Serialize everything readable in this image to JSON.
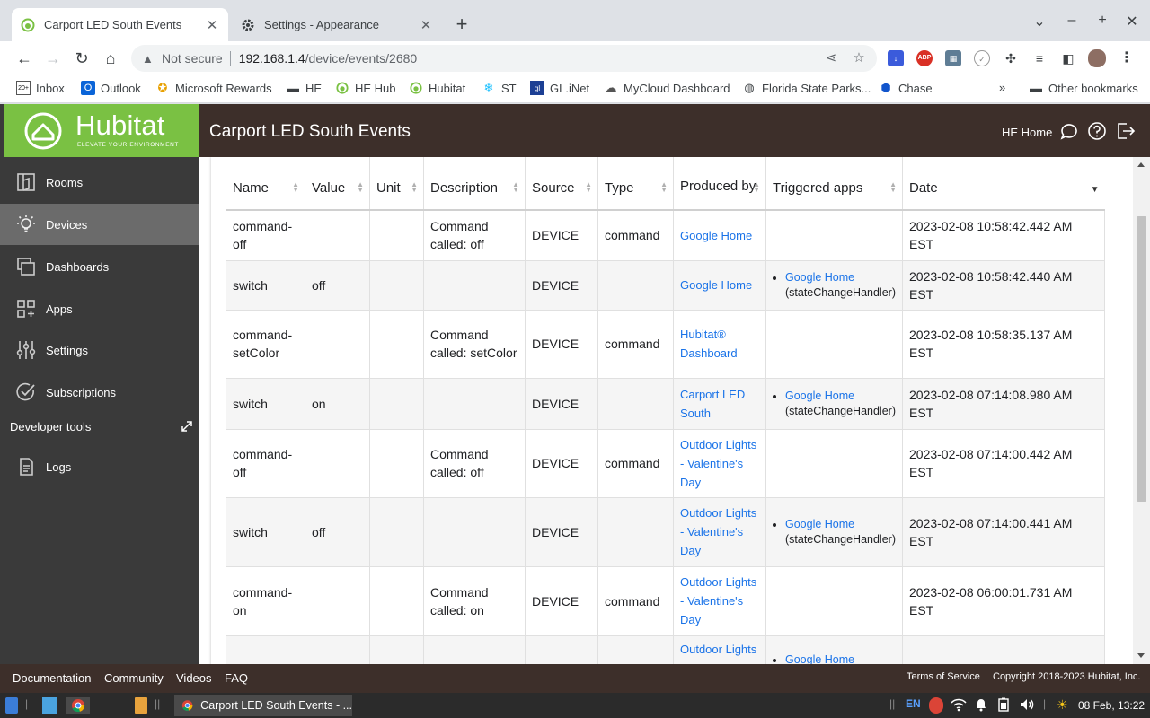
{
  "browser": {
    "tabs": [
      {
        "title": "Carport LED South Events",
        "icon": "hubitat-icon",
        "active": true
      },
      {
        "title": "Settings - Appearance",
        "icon": "gear-icon",
        "active": false
      }
    ],
    "address": {
      "security_label": "Not secure",
      "host": "192.168.1.4",
      "path": "/device/events/2680"
    },
    "bookmarks": [
      {
        "label": "Inbox",
        "icon": "gmail-icon"
      },
      {
        "label": "Outlook",
        "icon": "outlook-icon"
      },
      {
        "label": "Microsoft Rewards",
        "icon": "medal-icon"
      },
      {
        "label": "HE",
        "icon": "folder-icon"
      },
      {
        "label": "HE Hub",
        "icon": "hubitat-icon"
      },
      {
        "label": "Hubitat",
        "icon": "hubitat-icon"
      },
      {
        "label": "ST",
        "icon": "smartthings-icon"
      },
      {
        "label": "GL.iNet",
        "icon": "glinet-icon"
      },
      {
        "label": "MyCloud Dashboard",
        "icon": "cloud-icon"
      },
      {
        "label": "Florida State Parks...",
        "icon": "globe-icon"
      },
      {
        "label": "Chase",
        "icon": "chase-icon"
      }
    ],
    "other_bookmarks": "Other bookmarks",
    "overflow": "»"
  },
  "app": {
    "logo_word": "Hubitat",
    "logo_tagline": "ELEVATE YOUR ENVIRONMENT",
    "page_title": "Carport LED South Events",
    "hub_name": "HE Home",
    "sidebar": {
      "items": [
        {
          "label": "Rooms",
          "icon": "rooms-icon"
        },
        {
          "label": "Devices",
          "icon": "lightbulb-icon"
        },
        {
          "label": "Dashboards",
          "icon": "dashboards-icon"
        },
        {
          "label": "Apps",
          "icon": "apps-icon"
        },
        {
          "label": "Settings",
          "icon": "sliders-icon"
        },
        {
          "label": "Subscriptions",
          "icon": "checkmark-icon"
        }
      ],
      "developer_tools": "Developer tools",
      "logs": "Logs"
    },
    "table": {
      "columns": [
        "Name",
        "Value",
        "Unit",
        "Description",
        "Source",
        "Type",
        "Produced by",
        "Triggered apps",
        "Date"
      ],
      "rows": [
        {
          "name": "command-off",
          "value": "",
          "unit": "",
          "description": "Command called: off",
          "source": "DEVICE",
          "type": "command",
          "produced_by": "Google Home",
          "triggered": [],
          "date": "2023-02-08 10:58:42.442 AM EST"
        },
        {
          "name": "switch",
          "value": "off",
          "unit": "",
          "description": "",
          "source": "DEVICE",
          "type": "",
          "produced_by": "Google Home",
          "triggered": [
            {
              "app": "Google Home",
              "handler": "(stateChangeHandler)"
            }
          ],
          "date": "2023-02-08 10:58:42.440 AM EST"
        },
        {
          "name": "command-setColor",
          "value": "",
          "unit": "",
          "description": "Command called: setColor",
          "source": "DEVICE",
          "type": "command",
          "produced_by": "Hubitat® Dashboard",
          "triggered": [],
          "date": "2023-02-08 10:58:35.137 AM EST"
        },
        {
          "name": "switch",
          "value": "on",
          "unit": "",
          "description": "",
          "source": "DEVICE",
          "type": "",
          "produced_by": "Carport LED South",
          "triggered": [
            {
              "app": "Google Home",
              "handler": "(stateChangeHandler)"
            }
          ],
          "date": "2023-02-08 07:14:08.980 AM EST"
        },
        {
          "name": "command-off",
          "value": "",
          "unit": "",
          "description": "Command called: off",
          "source": "DEVICE",
          "type": "command",
          "produced_by": "Outdoor Lights - Valentine's Day",
          "triggered": [],
          "date": "2023-02-08 07:14:00.442 AM EST"
        },
        {
          "name": "switch",
          "value": "off",
          "unit": "",
          "description": "",
          "source": "DEVICE",
          "type": "",
          "produced_by": "Outdoor Lights - Valentine's Day",
          "triggered": [
            {
              "app": "Google Home",
              "handler": "(stateChangeHandler)"
            }
          ],
          "date": "2023-02-08 07:14:00.441 AM EST"
        },
        {
          "name": "command-on",
          "value": "",
          "unit": "",
          "description": "Command called: on",
          "source": "DEVICE",
          "type": "command",
          "produced_by": "Outdoor Lights - Valentine's Day",
          "triggered": [],
          "date": "2023-02-08 06:00:01.731 AM EST"
        },
        {
          "name": "",
          "value": "",
          "unit": "",
          "description": "",
          "source": "",
          "type": "",
          "produced_by": "Outdoor Lights",
          "triggered": [
            {
              "app": "Google Home",
              "handler": ""
            }
          ],
          "date": ""
        }
      ]
    },
    "footer": {
      "links": [
        "Documentation",
        "Community",
        "Videos",
        "FAQ"
      ],
      "terms": "Terms of Service",
      "copyright": "Copyright 2018-2023 Hubitat, Inc."
    }
  },
  "taskbar": {
    "window_title": "Carport LED South Events - ...",
    "lang": "EN",
    "clock": "08 Feb, 13:22"
  },
  "colors": {
    "hubitat_green": "#7ac143",
    "header_brown": "#3d2f2a",
    "sidebar_gray": "#3a3a3a",
    "link_blue": "#1a73e8"
  }
}
